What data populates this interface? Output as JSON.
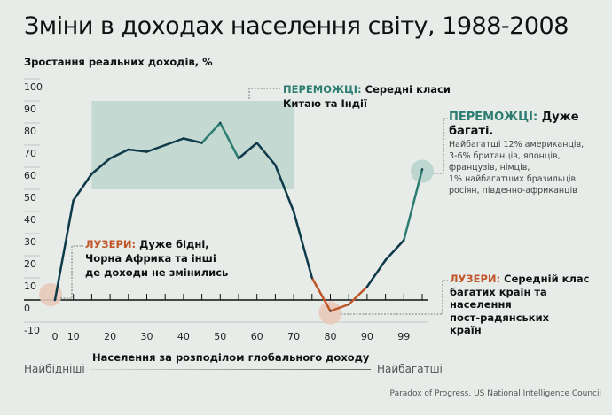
{
  "chart_data": {
    "type": "line",
    "title": "Зміни в доходах населення світу, 1988-2008",
    "ylabel": "Зростання реальних доходів, %",
    "xlabel": "Населення за розподілом глобального доходу",
    "ylim": [
      -10,
      100
    ],
    "yticks": [
      100,
      90,
      80,
      70,
      60,
      50,
      40,
      30,
      20,
      10,
      0,
      -10
    ],
    "x": [
      0,
      5,
      10,
      15,
      20,
      25,
      30,
      35,
      40,
      45,
      50,
      55,
      60,
      65,
      70,
      75,
      80,
      85,
      90,
      95,
      100
    ],
    "values": [
      0,
      45,
      57,
      64,
      68,
      67,
      70,
      73,
      71,
      80,
      64,
      71,
      61,
      40,
      10,
      -5,
      -2,
      6,
      18,
      27,
      59
    ],
    "xtick_labels": [
      {
        "label": "0",
        "at": 0
      },
      {
        "label": "10",
        "at": 5
      },
      {
        "label": "20",
        "at": 15
      },
      {
        "label": "30",
        "at": 25
      },
      {
        "label": "40",
        "at": 35
      },
      {
        "label": "50",
        "at": 45
      },
      {
        "label": "60",
        "at": 55
      },
      {
        "label": "70",
        "at": 65
      },
      {
        "label": "80",
        "at": 75
      },
      {
        "label": "90",
        "at": 85
      },
      {
        "label": "99",
        "at": 95
      }
    ],
    "highlight_range": {
      "x": [
        10,
        65
      ],
      "y": [
        50,
        90
      ]
    },
    "scale_left": "Найбідніші",
    "scale_right": "Найбагатші",
    "colors": {
      "line": "#0f3a4a",
      "winners": "#2e7d72",
      "losers": "#c0562a",
      "box": "#c3d9d2",
      "loser_circle": "#e8c9b8",
      "winner_circle": "#bdd6cf"
    }
  },
  "annotations": {
    "winners_middle": {
      "tag": "ПЕРЕМОЖЦІ:",
      "text1": "Середні класи",
      "text2": "Китаю та Індії"
    },
    "winners_rich": {
      "tag": "ПЕРЕМОЖЦІ:",
      "text": "Дуже багаті.",
      "lines": [
        "Найбагатші 12% американців,",
        "3-6% британців, японців,",
        "французів, німців,",
        "1% найбагатших бразильців,",
        "росіян, південно-африканців"
      ]
    },
    "losers_poor": {
      "tag": "ЛУЗЕРИ:",
      "text1": "Дуже бідні,",
      "text2": "Чорна Африка та інші",
      "text3": "де доходи не змінились"
    },
    "losers_middle": {
      "tag": "ЛУЗЕРИ:",
      "text1": "Середній клас",
      "text2": "багатих країн та",
      "text3": "населення",
      "text4": "пост-радянських",
      "text5": "країн"
    }
  },
  "source": "Paradox of Progress, US National Intelligence Council"
}
